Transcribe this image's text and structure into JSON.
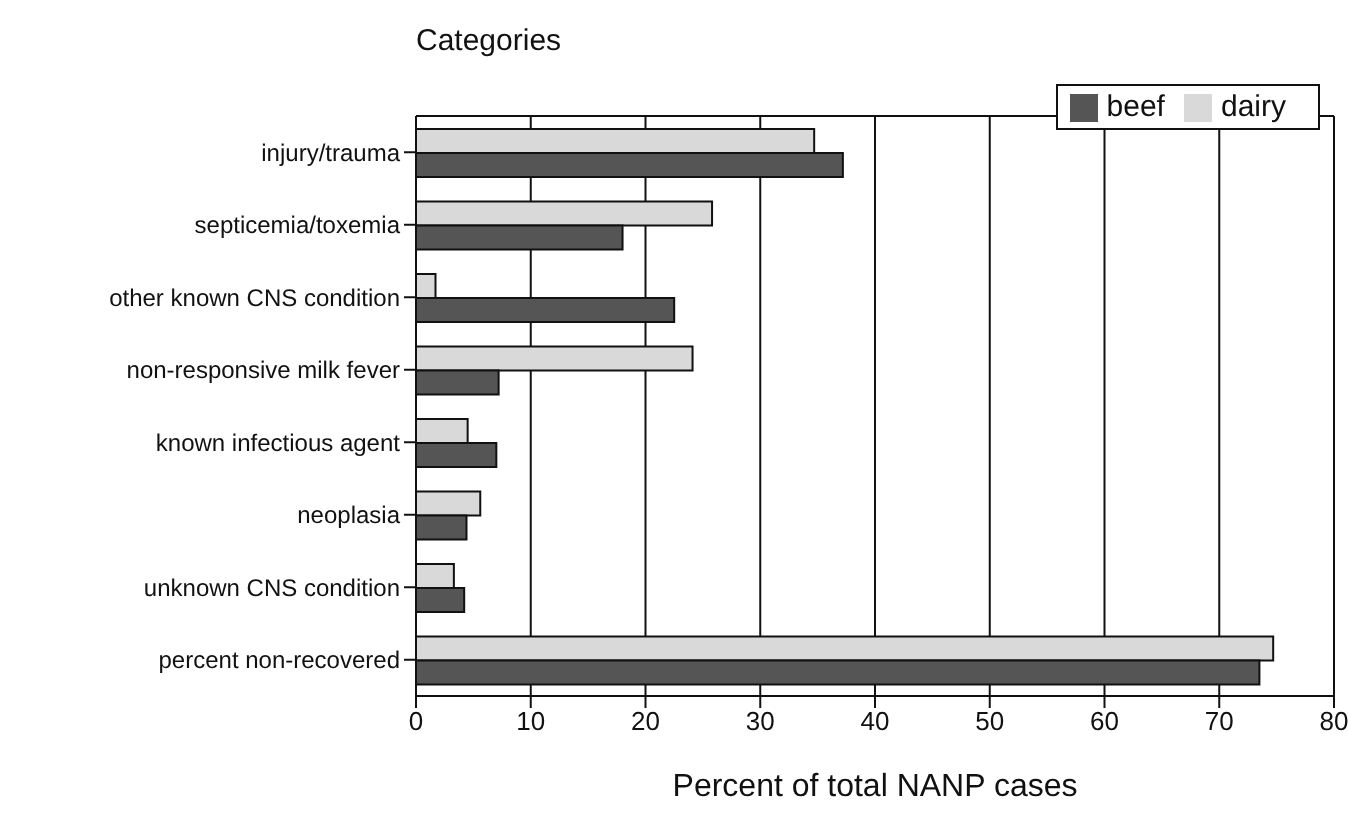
{
  "chart_data": {
    "type": "bar",
    "orientation": "horizontal",
    "ylabel": "Categories",
    "xlabel": "Percent of total NANP cases",
    "categories": [
      "injury/trauma",
      "septicemia/toxemia",
      "other known CNS condition",
      "non-responsive milk fever",
      "known infectious agent",
      "neoplasia",
      "unknown CNS condition",
      "percent non-recovered"
    ],
    "series": [
      {
        "name": "dairy",
        "color": "#d9d9d9",
        "values": [
          34.7,
          25.8,
          1.7,
          24.1,
          4.5,
          5.6,
          3.3,
          74.7
        ]
      },
      {
        "name": "beef",
        "color": "#555555",
        "values": [
          37.2,
          18.0,
          22.5,
          7.2,
          7.0,
          4.4,
          4.2,
          73.5
        ]
      }
    ],
    "xlim": [
      0,
      80
    ],
    "xticks": [
      0,
      10,
      20,
      30,
      40,
      50,
      60,
      70,
      80
    ],
    "grid": "x",
    "legend": "top right"
  }
}
